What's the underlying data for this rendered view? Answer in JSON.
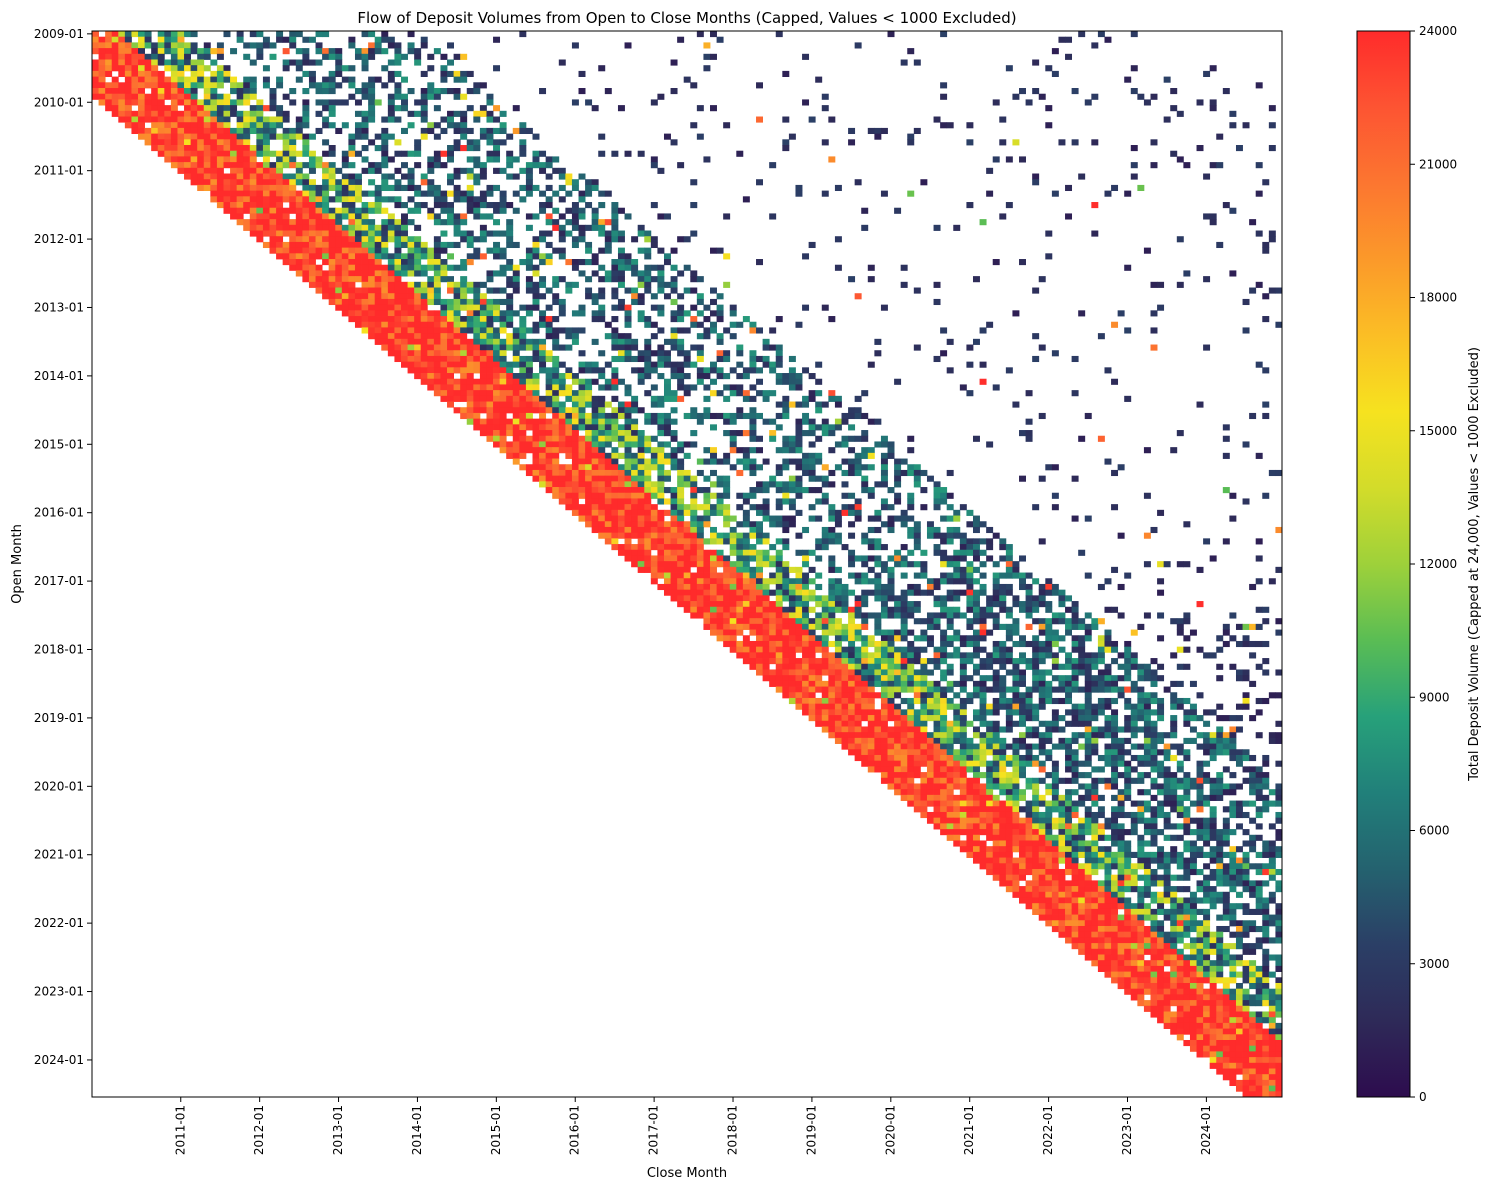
{
  "chart_data": {
    "type": "heatmap",
    "title": "Flow of Deposit Volumes from Open to Close Months (Capped, Values < 1000 Excluded)",
    "xlabel": "Close Month",
    "ylabel": "Open Month",
    "x_range": [
      "2009-12",
      "2024-12"
    ],
    "y_range": [
      "2009-01",
      "2024-07"
    ],
    "x_ticks": [
      "2011-01",
      "2012-01",
      "2013-01",
      "2014-01",
      "2015-01",
      "2016-01",
      "2017-01",
      "2018-01",
      "2019-01",
      "2020-01",
      "2021-01",
      "2022-01",
      "2023-01",
      "2024-01"
    ],
    "y_ticks": [
      "2009-01",
      "2010-01",
      "2011-01",
      "2012-01",
      "2013-01",
      "2014-01",
      "2015-01",
      "2016-01",
      "2017-01",
      "2018-01",
      "2019-01",
      "2020-01",
      "2021-01",
      "2022-01",
      "2023-01",
      "2024-01"
    ],
    "cap": 24000,
    "min_included": 1000,
    "colorbar": {
      "label": "Total Deposit Volume (Capped at 24,000, Values < 1000 Excluded)",
      "ticks": [
        "0",
        "3000",
        "6000",
        "9000",
        "12000",
        "15000",
        "18000",
        "21000",
        "24000"
      ],
      "range": [
        0,
        24000
      ],
      "colors": [
        "#2d0c4e",
        "#2e2a58",
        "#2b3f66",
        "#24626f",
        "#21807a",
        "#27a17a",
        "#5abd54",
        "#9ed13a",
        "#d3dc2a",
        "#f6e21f",
        "#fbbe25",
        "#fb992a",
        "#fc7630",
        "#fd5432",
        "#ff2b2b"
      ]
    },
    "description_of_data": "Upper-triangular open-month x close-month matrix; diagonal cells (short holding periods) saturate at the 24000 cap, off-diagonal cells range 1000-24000 with mostly 1000-8000 values.",
    "grid": false,
    "legend": "colorbar-right",
    "regions": [
      {
        "open": [
          "2009-01",
          "2024-07"
        ],
        "lag_months": [
          0,
          14
        ],
        "level": "high",
        "typical_value": 22000
      },
      {
        "open": [
          "2009-01",
          "2024-07"
        ],
        "lag_months": [
          15,
          24
        ],
        "level": "medium",
        "typical_value": 9000
      },
      {
        "open": [
          "2009-01",
          "2024-07"
        ],
        "lag_months": [
          25,
          60
        ],
        "level": "low-medium",
        "typical_value": 4000
      },
      {
        "open": [
          "2009-01",
          "2024-07"
        ],
        "lag_months": [
          61,
          180
        ],
        "level": "sparse-low",
        "typical_value": 2000
      }
    ]
  }
}
